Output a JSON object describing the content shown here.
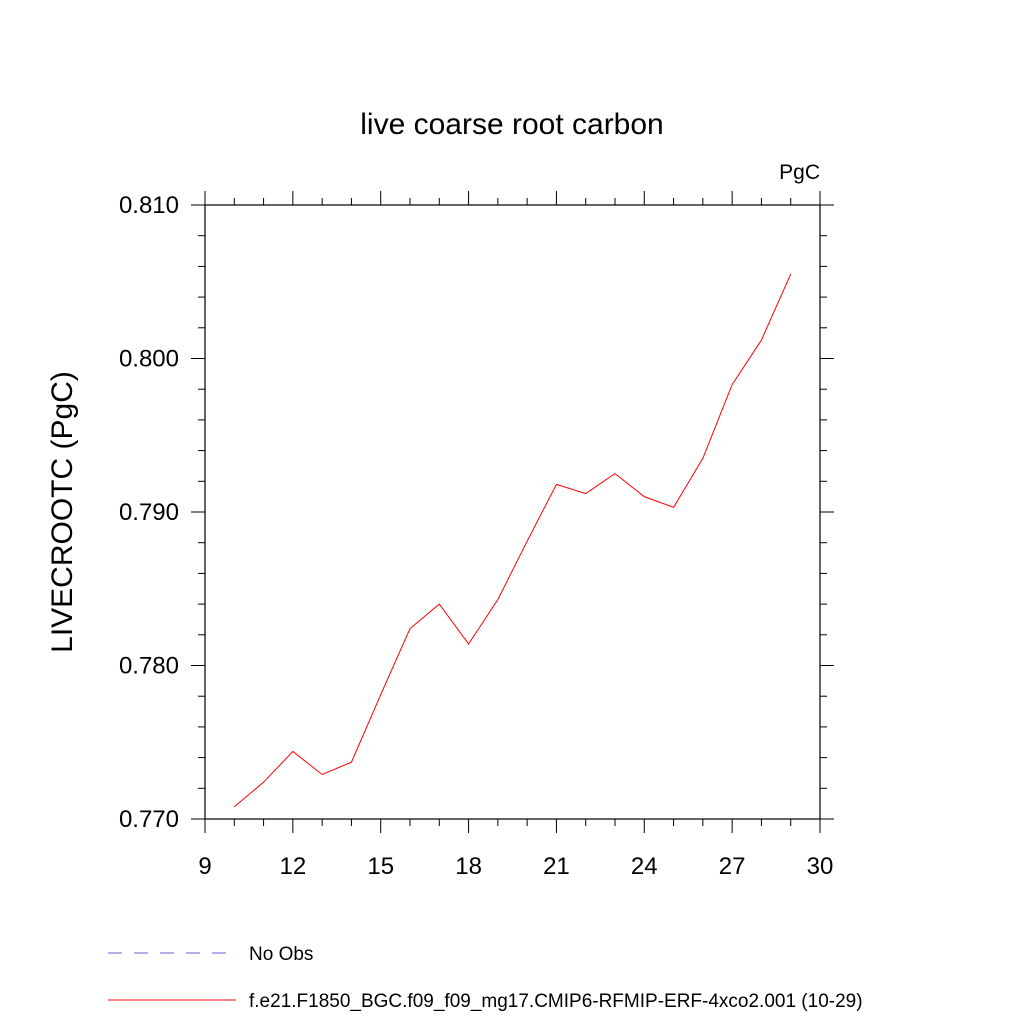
{
  "chart_data": {
    "type": "line",
    "title": "live coarse root carbon",
    "units_label": "PgC",
    "ylabel": "LIVECROOTC  (PgC)",
    "xlabel": "",
    "xlim": [
      9,
      30
    ],
    "ylim": [
      0.77,
      0.81
    ],
    "x_ticks": [
      9,
      12,
      15,
      18,
      21,
      24,
      27,
      30
    ],
    "x_tick_labels": [
      "9",
      "12",
      "15",
      "18",
      "21",
      "24",
      "27",
      "30"
    ],
    "y_ticks": [
      0.77,
      0.78,
      0.79,
      0.8,
      0.81
    ],
    "y_tick_labels": [
      "0.770",
      "0.780",
      "0.790",
      "0.800",
      "0.810"
    ],
    "grid": false,
    "series": [
      {
        "name": "f.e21.F1850_BGC.f09_f09_mg17.CMIP6-RFMIP-ERF-4xco2.001 (10-29)",
        "color": "#ff0000",
        "line_style": "solid",
        "x": [
          10,
          11,
          12,
          13,
          14,
          15,
          16,
          17,
          18,
          19,
          20,
          21,
          22,
          23,
          24,
          25,
          26,
          27,
          28,
          29
        ],
        "values": [
          0.7708,
          0.7724,
          0.7744,
          0.7729,
          0.7737,
          0.7781,
          0.7824,
          0.784,
          0.7814,
          0.7843,
          0.7881,
          0.7918,
          0.7912,
          0.7925,
          0.791,
          0.7903,
          0.7935,
          0.7983,
          0.8012,
          0.8055
        ]
      }
    ],
    "legend": [
      {
        "label": "No Obs",
        "color": "#6a5acd",
        "line_style": "dashed"
      },
      {
        "label": "f.e21.F1850_BGC.f09_f09_mg17.CMIP6-RFMIP-ERF-4xco2.001 (10-29)",
        "color": "#ff0000",
        "line_style": "solid"
      }
    ],
    "legend_position": "bottom"
  }
}
